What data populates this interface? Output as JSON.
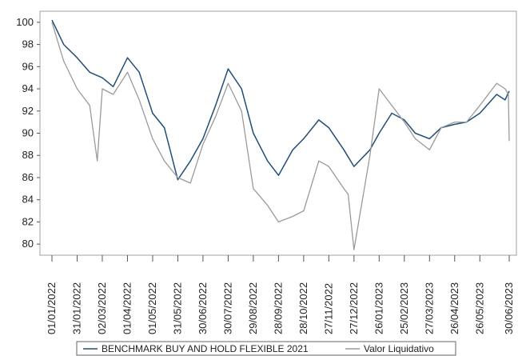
{
  "chart_data": {
    "type": "line",
    "title": "",
    "xlabel": "",
    "ylabel": "",
    "ylim": [
      79,
      101
    ],
    "yticks": [
      80,
      82,
      84,
      86,
      88,
      90,
      92,
      94,
      96,
      98,
      100
    ],
    "grid": false,
    "legend_position": "bottom",
    "x_ticks": [
      "01/01/2022",
      "31/01/2022",
      "02/03/2022",
      "01/04/2022",
      "01/05/2022",
      "31/05/2022",
      "30/06/2022",
      "30/07/2022",
      "29/08/2022",
      "28/09/2022",
      "28/10/2022",
      "27/11/2022",
      "27/12/2022",
      "26/01/2023",
      "25/02/2023",
      "27/03/2023",
      "26/04/2023",
      "26/05/2023",
      "30/06/2023"
    ],
    "series": [
      {
        "name": "BENCHMARK BUY AND HOLD FLEXIBLE 2021",
        "color": "#1f4e79",
        "x": [
          "01/01/2022",
          "15/01/2022",
          "31/01/2022",
          "15/02/2022",
          "02/03/2022",
          "15/03/2022",
          "01/04/2022",
          "15/04/2022",
          "01/05/2022",
          "15/05/2022",
          "31/05/2022",
          "15/06/2022",
          "30/06/2022",
          "15/07/2022",
          "30/07/2022",
          "15/08/2022",
          "29/08/2022",
          "15/09/2022",
          "28/09/2022",
          "15/10/2022",
          "28/10/2022",
          "15/11/2022",
          "27/11/2022",
          "15/12/2022",
          "27/12/2022",
          "15/01/2023",
          "26/01/2023",
          "10/02/2023",
          "25/02/2023",
          "10/03/2023",
          "27/03/2023",
          "10/04/2023",
          "26/04/2023",
          "10/05/2023",
          "26/05/2023",
          "15/06/2023",
          "25/06/2023",
          "30/06/2023"
        ],
        "values": [
          100.2,
          98,
          96.8,
          95.5,
          95,
          94.2,
          96.8,
          95.5,
          91.8,
          90.5,
          85.8,
          87.5,
          89.5,
          92.5,
          95.8,
          94,
          90,
          87.5,
          86.2,
          88.5,
          89.5,
          91.2,
          90.5,
          88.5,
          87,
          88.5,
          90,
          91.8,
          91.2,
          90,
          89.5,
          90.5,
          90.8,
          91,
          91.8,
          93.5,
          93,
          93.8
        ]
      },
      {
        "name": "Valor Liquidativo",
        "color": "#9a9a9a",
        "x": [
          "01/01/2022",
          "15/01/2022",
          "31/01/2022",
          "15/02/2022",
          "24/02/2022",
          "02/03/2022",
          "15/03/2022",
          "01/04/2022",
          "15/04/2022",
          "01/05/2022",
          "15/05/2022",
          "31/05/2022",
          "15/06/2022",
          "30/06/2022",
          "15/07/2022",
          "30/07/2022",
          "15/08/2022",
          "29/08/2022",
          "15/09/2022",
          "28/09/2022",
          "15/10/2022",
          "28/10/2022",
          "15/11/2022",
          "27/11/2022",
          "15/12/2022",
          "20/12/2022",
          "27/12/2022",
          "15/01/2023",
          "26/01/2023",
          "10/02/2023",
          "25/02/2023",
          "10/03/2023",
          "27/03/2023",
          "10/04/2023",
          "26/04/2023",
          "10/05/2023",
          "26/05/2023",
          "15/06/2023",
          "25/06/2023",
          "29/06/2023",
          "30/06/2023"
        ],
        "values": [
          100,
          96.5,
          94,
          92.5,
          87.5,
          94,
          93.5,
          95.5,
          93,
          89.5,
          87.5,
          86,
          85.5,
          89,
          91.5,
          94.5,
          92,
          85,
          83.5,
          82,
          82.5,
          83,
          87.5,
          87,
          85,
          84.5,
          79.5,
          88,
          94,
          92.5,
          91,
          89.5,
          88.5,
          90.5,
          91,
          91,
          92.5,
          94.5,
          94,
          93.5,
          89.3
        ]
      }
    ]
  }
}
